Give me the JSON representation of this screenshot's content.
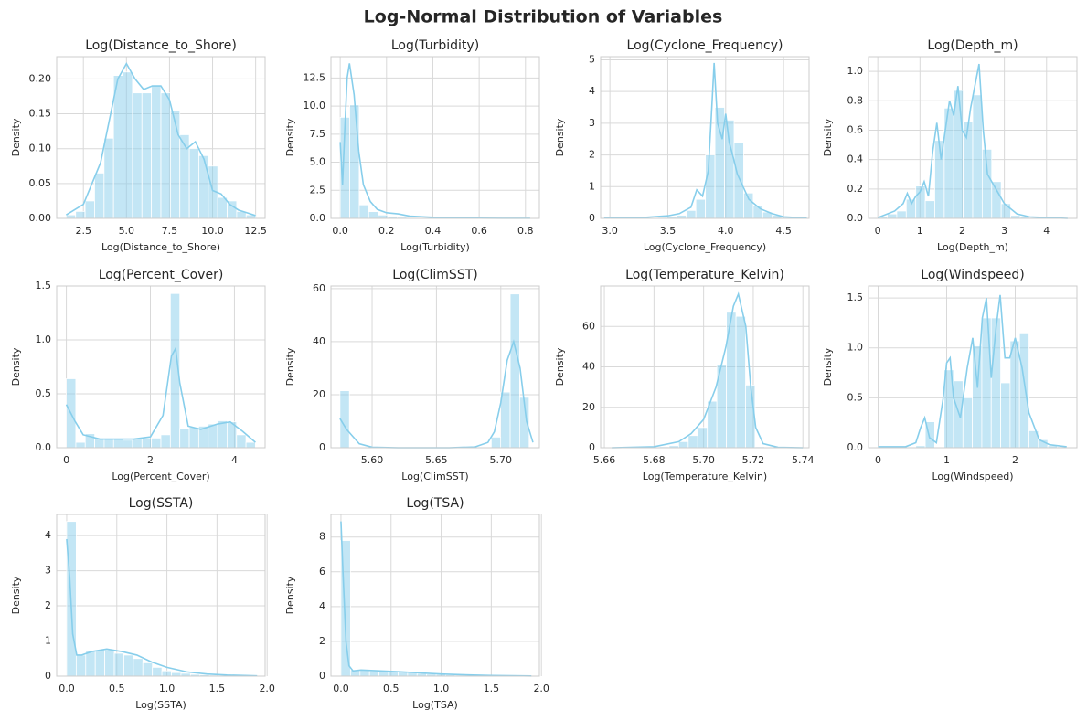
{
  "title": "Log-Normal Distribution of Variables",
  "chart_data": [
    {
      "type": "histogram",
      "title": "Log(Distance_to_Shore)",
      "xlabel": "Log(Distance_to_Shore)",
      "ylabel": "Density",
      "color": "#87ceeb",
      "grid": true,
      "bins": [
        1.5,
        2.05,
        2.6,
        3.15,
        3.7,
        4.25,
        4.8,
        5.35,
        5.9,
        6.45,
        7.0,
        7.55,
        8.1,
        8.65,
        9.2,
        9.75,
        10.3,
        10.85,
        11.4,
        11.95,
        12.5
      ],
      "values": [
        0.005,
        0.01,
        0.025,
        0.065,
        0.115,
        0.205,
        0.21,
        0.18,
        0.18,
        0.19,
        0.18,
        0.155,
        0.12,
        0.1,
        0.09,
        0.075,
        0.03,
        0.025,
        0.01,
        0.005
      ],
      "kde": {
        "x": [
          1.5,
          2.5,
          3.5,
          4.0,
          4.5,
          5.0,
          5.5,
          6.0,
          6.5,
          7.0,
          7.5,
          8.0,
          8.5,
          9.0,
          9.5,
          10.0,
          10.5,
          11,
          11.5,
          12,
          12.5
        ],
        "values": [
          0.005,
          0.02,
          0.08,
          0.14,
          0.2,
          0.222,
          0.2,
          0.185,
          0.19,
          0.19,
          0.17,
          0.12,
          0.1,
          0.11,
          0.085,
          0.04,
          0.035,
          0.02,
          0.012,
          0.008,
          0.004
        ]
      },
      "xlim": [
        0.95,
        13.05
      ],
      "xticks": [
        2.5,
        {
          "value": 5,
          "label": "5.0"
        },
        7.5,
        {
          "value": 10,
          "label": "10.0"
        },
        12.5
      ],
      "ylim": [
        0,
        0.232
      ],
      "yticks": [
        {
          "value": 0,
          "label": "0.00"
        },
        0.05,
        {
          "value": 0.1,
          "label": "0.10"
        },
        0.15,
        {
          "value": 0.2,
          "label": "0.20"
        }
      ]
    },
    {
      "type": "histogram",
      "title": "Log(Turbidity)",
      "xlabel": "Log(Turbidity)",
      "ylabel": "Density",
      "color": "#87ceeb",
      "grid": true,
      "bins": [
        0,
        0.041,
        0.082,
        0.123,
        0.164,
        0.205,
        0.246,
        0.287,
        0.328,
        0.369,
        0.41,
        0.451,
        0.492,
        0.533,
        0.574,
        0.615,
        0.656,
        0.697,
        0.738,
        0.779,
        0.82
      ],
      "values": [
        9.0,
        10.1,
        1.2,
        0.6,
        0.3,
        0.2,
        0.1,
        0.05,
        0.03,
        0.02,
        0.01,
        0.01,
        0.005,
        0,
        0,
        0,
        0,
        0,
        0,
        0.005
      ],
      "kde": {
        "x": [
          0,
          0.01,
          0.02,
          0.03,
          0.04,
          0.06,
          0.08,
          0.1,
          0.13,
          0.16,
          0.2,
          0.25,
          0.3,
          0.4,
          0.5,
          0.6,
          0.7,
          0.82
        ],
        "values": [
          6.8,
          3.0,
          8,
          12.5,
          13.8,
          11,
          6,
          3,
          1.5,
          0.8,
          0.5,
          0.4,
          0.2,
          0.1,
          0.05,
          0.02,
          0.01,
          0.01
        ]
      },
      "xlim": [
        -0.04,
        0.86
      ],
      "xticks": [
        {
          "value": 0,
          "label": "0.0"
        },
        0.2,
        0.4,
        0.6,
        0.8
      ],
      "ylim": [
        0,
        14.4
      ],
      "yticks": [
        {
          "value": 0,
          "label": "0.0"
        },
        2.5,
        {
          "value": 5,
          "label": "5.0"
        },
        7.5,
        {
          "value": 10,
          "label": "10.0"
        },
        12.5
      ]
    },
    {
      "type": "histogram",
      "title": "Log(Cyclone_Frequency)",
      "xlabel": "Log(Cyclone_Frequency)",
      "ylabel": "Density",
      "color": "#87ceeb",
      "grid": true,
      "bins": [
        3.0,
        3.0825,
        3.165,
        3.2475,
        3.33,
        3.4125,
        3.495,
        3.5775,
        3.66,
        3.7425,
        3.825,
        3.9075,
        3.99,
        4.0725,
        4.155,
        4.2375,
        4.32,
        4.4025,
        4.485,
        4.5675,
        4.65
      ],
      "values": [
        0.01,
        0.01,
        0.01,
        0.02,
        0.02,
        0.03,
        0.05,
        0.1,
        0.25,
        0.6,
        2.0,
        3.5,
        3.1,
        2.4,
        0.8,
        0.4,
        0.2,
        0.1,
        0.05,
        0.02
      ],
      "kde": {
        "x": [
          2.95,
          3.3,
          3.5,
          3.6,
          3.7,
          3.75,
          3.8,
          3.85,
          3.88,
          3.9,
          3.93,
          3.97,
          4.0,
          4.03,
          4.06,
          4.1,
          4.2,
          4.3,
          4.4,
          4.5,
          4.7
        ],
        "values": [
          0.01,
          0.03,
          0.08,
          0.15,
          0.35,
          0.9,
          0.7,
          1.5,
          3.5,
          4.9,
          3.0,
          2.5,
          3.3,
          2.4,
          2.0,
          1.4,
          0.6,
          0.3,
          0.15,
          0.05,
          0.01
        ]
      },
      "xlim": [
        2.92,
        4.72
      ],
      "xticks": [
        {
          "value": 3,
          "label": "3.0"
        },
        3.5,
        {
          "value": 4,
          "label": "4.0"
        },
        4.5
      ],
      "ylim": [
        0,
        5.1
      ],
      "yticks": [
        0,
        1,
        2,
        3,
        4,
        5
      ]
    },
    {
      "type": "histogram",
      "title": "Log(Depth_m)",
      "xlabel": "Log(Depth_m)",
      "ylabel": "Density",
      "color": "#87ceeb",
      "grid": true,
      "bins": [
        0,
        0.225,
        0.45,
        0.675,
        0.9,
        1.125,
        1.35,
        1.575,
        1.8,
        2.025,
        2.25,
        2.475,
        2.7,
        2.925,
        3.15,
        3.375,
        3.6,
        3.825,
        4.05,
        4.275,
        4.5
      ],
      "values": [
        0.01,
        0.03,
        0.05,
        0.13,
        0.22,
        0.12,
        0.53,
        0.75,
        0.87,
        0.66,
        0.84,
        0.47,
        0.25,
        0.1,
        0.02,
        0.01,
        0.005,
        0.003,
        0.002,
        0.001
      ],
      "kde": {
        "x": [
          0,
          0.4,
          0.6,
          0.7,
          0.8,
          0.9,
          1.0,
          1.1,
          1.2,
          1.3,
          1.4,
          1.5,
          1.6,
          1.7,
          1.8,
          1.9,
          2.0,
          2.1,
          2.2,
          2.3,
          2.4,
          2.5,
          2.6,
          2.8,
          3.0,
          3.3,
          3.6,
          4.5
        ],
        "values": [
          0.005,
          0.05,
          0.1,
          0.17,
          0.1,
          0.15,
          0.18,
          0.25,
          0.15,
          0.45,
          0.65,
          0.4,
          0.6,
          0.8,
          0.7,
          0.9,
          0.6,
          0.55,
          0.75,
          0.9,
          1.05,
          0.6,
          0.3,
          0.2,
          0.1,
          0.03,
          0.01,
          0
        ]
      },
      "xlim": [
        -0.22,
        4.72
      ],
      "xticks": [
        0,
        1,
        2,
        3,
        4
      ],
      "ylim": [
        0,
        1.1
      ],
      "yticks": [
        {
          "value": 0,
          "label": "0.0"
        },
        0.2,
        0.4,
        0.6,
        0.8,
        {
          "value": 1,
          "label": "1.0"
        }
      ]
    },
    {
      "type": "histogram",
      "title": "Log(Percent_Cover)",
      "xlabel": "Log(Percent_Cover)",
      "ylabel": "Density",
      "color": "#87ceeb",
      "grid": true,
      "bins": [
        0,
        0.225,
        0.45,
        0.675,
        0.9,
        1.125,
        1.35,
        1.575,
        1.8,
        2.025,
        2.25,
        2.475,
        2.7,
        2.925,
        3.15,
        3.375,
        3.6,
        3.825,
        4.05,
        4.275,
        4.5
      ],
      "values": [
        0.64,
        0.05,
        0.13,
        0.08,
        0.08,
        0.08,
        0.07,
        0.08,
        0.08,
        0.09,
        0.12,
        1.43,
        0.18,
        0.19,
        0.2,
        0.22,
        0.25,
        0.24,
        0.12,
        0.05
      ],
      "kde": {
        "x": [
          0,
          0.2,
          0.4,
          0.8,
          1.2,
          1.6,
          2.0,
          2.3,
          2.5,
          2.6,
          2.7,
          2.9,
          3.2,
          3.6,
          3.9,
          4.2,
          4.5
        ],
        "values": [
          0.4,
          0.25,
          0.12,
          0.08,
          0.08,
          0.08,
          0.1,
          0.3,
          0.85,
          0.92,
          0.6,
          0.2,
          0.17,
          0.22,
          0.24,
          0.15,
          0.05
        ]
      },
      "xlim": [
        -0.23,
        4.73
      ],
      "xticks": [
        0,
        2,
        4
      ],
      "ylim": [
        0,
        1.5
      ],
      "yticks": [
        {
          "value": 0,
          "label": "0.0"
        },
        0.5,
        {
          "value": 1,
          "label": "1.0"
        },
        1.5
      ]
    },
    {
      "type": "histogram",
      "title": "Log(ClimSST)",
      "xlabel": "Log(ClimSST)",
      "ylabel": "Density",
      "color": "#87ceeb",
      "grid": true,
      "bins": [
        5.575,
        5.58235,
        5.5897,
        5.59705,
        5.6044,
        5.61175,
        5.6191,
        5.62645,
        5.6338,
        5.64115,
        5.6485,
        5.65585,
        5.6632,
        5.67055,
        5.6779,
        5.68525,
        5.6926,
        5.69995,
        5.7073,
        5.71465,
        5.722
      ],
      "values": [
        21.5,
        0,
        0,
        0,
        0,
        0,
        0,
        0,
        0,
        0,
        0,
        0,
        0,
        0,
        0,
        0,
        4.0,
        21,
        58,
        19
      ],
      "kde": {
        "x": [
          5.575,
          5.58,
          5.59,
          5.6,
          5.62,
          5.64,
          5.66,
          5.68,
          5.69,
          5.695,
          5.7,
          5.705,
          5.71,
          5.715,
          5.72,
          5.725
        ],
        "values": [
          11,
          7,
          1.5,
          0.2,
          0,
          0,
          0,
          0.3,
          2,
          6,
          17,
          33,
          40,
          30,
          10,
          2
        ]
      },
      "xlim": [
        5.568,
        5.73
      ],
      "xticks": [
        {
          "value": 5.6,
          "label": "5.60"
        },
        5.65,
        {
          "value": 5.7,
          "label": "5.70"
        }
      ],
      "ylim": [
        0,
        61
      ],
      "yticks": [
        0,
        20,
        40,
        60
      ]
    },
    {
      "type": "histogram",
      "title": "Log(Temperature_Kelvin)",
      "xlabel": "Log(Temperature_Kelvin)",
      "ylabel": "Density",
      "color": "#87ceeb",
      "grid": true,
      "bins": [
        5.663,
        5.66685,
        5.6707,
        5.67455,
        5.6784,
        5.68225,
        5.6861,
        5.68995,
        5.6938,
        5.69765,
        5.7015,
        5.70535,
        5.7092,
        5.71305,
        5.7169,
        5.72075,
        5.7246,
        5.72845,
        5.7323,
        5.73615,
        5.74
      ],
      "values": [
        0,
        0,
        0,
        0,
        0.2,
        0.5,
        1,
        3,
        6,
        10,
        23,
        41,
        67,
        65,
        31,
        0.5,
        0,
        0,
        0,
        0.1
      ],
      "kde": {
        "x": [
          5.663,
          5.68,
          5.69,
          5.695,
          5.7,
          5.705,
          5.709,
          5.712,
          5.714,
          5.717,
          5.719,
          5.721,
          5.724,
          5.73,
          5.74
        ],
        "values": [
          0,
          0.5,
          3,
          7,
          14,
          30,
          50,
          70,
          76,
          60,
          30,
          10,
          2,
          0.2,
          0
        ]
      },
      "xlim": [
        5.6585,
        5.7425
      ],
      "xticks": [
        5.66,
        5.68,
        {
          "value": 5.7,
          "label": "5.70"
        },
        5.72,
        5.74
      ],
      "ylim": [
        0,
        80
      ],
      "yticks": [
        0,
        20,
        40,
        60
      ]
    },
    {
      "type": "histogram",
      "title": "Log(Windspeed)",
      "xlabel": "Log(Windspeed)",
      "ylabel": "Density",
      "color": "#87ceeb",
      "grid": true,
      "bins": [
        0,
        0.1375,
        0.275,
        0.4125,
        0.55,
        0.6875,
        0.825,
        0.9625,
        1.1,
        1.2375,
        1.375,
        1.5125,
        1.65,
        1.7875,
        1.925,
        2.0625,
        2.2,
        2.3375,
        2.475,
        2.6125,
        2.75
      ],
      "values": [
        0.01,
        0,
        0,
        0,
        0.02,
        0.26,
        0,
        0.78,
        0.67,
        0.5,
        1.02,
        1.3,
        1.3,
        0.65,
        1.07,
        1.15,
        0.17,
        0.08,
        0.02,
        0.01
      ],
      "kde": {
        "x": [
          0,
          0.4,
          0.55,
          0.62,
          0.68,
          0.75,
          0.85,
          0.95,
          1.0,
          1.05,
          1.1,
          1.2,
          1.3,
          1.38,
          1.45,
          1.52,
          1.58,
          1.65,
          1.72,
          1.78,
          1.85,
          1.92,
          2.0,
          2.1,
          2.2,
          2.35,
          2.5,
          2.75
        ],
        "values": [
          0.01,
          0.01,
          0.05,
          0.2,
          0.3,
          0.1,
          0.05,
          0.5,
          0.85,
          0.9,
          0.5,
          0.3,
          0.8,
          1.1,
          0.6,
          1.3,
          1.5,
          0.7,
          1.2,
          1.53,
          0.9,
          0.9,
          1.1,
          0.8,
          0.35,
          0.08,
          0.03,
          0.01
        ]
      },
      "xlim": [
        -0.14,
        2.9
      ],
      "xticks": [
        0,
        1,
        2
      ],
      "ylim": [
        0,
        1.62
      ],
      "yticks": [
        {
          "value": 0,
          "label": "0.0"
        },
        0.5,
        {
          "value": 1,
          "label": "1.0"
        },
        1.5
      ]
    },
    {
      "type": "histogram",
      "title": "Log(SSTA)",
      "xlabel": "Log(SSTA)",
      "ylabel": "Density",
      "color": "#87ceeb",
      "grid": true,
      "bins": [
        0,
        0.095,
        0.19,
        0.285,
        0.38,
        0.475,
        0.57,
        0.665,
        0.76,
        0.855,
        0.95,
        1.045,
        1.14,
        1.235,
        1.33,
        1.425,
        1.52,
        1.615,
        1.71,
        1.805,
        1.9
      ],
      "values": [
        4.4,
        0.6,
        0.72,
        0.75,
        0.75,
        0.65,
        0.6,
        0.5,
        0.38,
        0.25,
        0.15,
        0.1,
        0.08,
        0.05,
        0.04,
        0.03,
        0.02,
        0.01,
        0.01,
        0.01
      ],
      "kde": {
        "x": [
          0,
          0.03,
          0.06,
          0.1,
          0.15,
          0.25,
          0.4,
          0.55,
          0.7,
          0.85,
          1.0,
          1.2,
          1.4,
          1.6,
          1.9
        ],
        "values": [
          3.9,
          2.8,
          1.2,
          0.6,
          0.6,
          0.7,
          0.77,
          0.7,
          0.6,
          0.4,
          0.25,
          0.12,
          0.06,
          0.03,
          0.01
        ]
      },
      "xlim": [
        -0.1,
        1.98
      ],
      "xticks": [
        {
          "value": 0,
          "label": "0.0"
        },
        0.5,
        {
          "value": 1,
          "label": "1.0"
        },
        1.5,
        {
          "value": 2,
          "label": "2.0"
        }
      ],
      "ylim": [
        0,
        4.6
      ],
      "yticks": [
        0,
        1,
        2,
        3,
        4
      ]
    },
    {
      "type": "histogram",
      "title": "Log(TSA)",
      "xlabel": "Log(TSA)",
      "ylabel": "Density",
      "color": "#87ceeb",
      "grid": true,
      "bins": [
        0,
        0.095,
        0.19,
        0.285,
        0.38,
        0.475,
        0.57,
        0.665,
        0.76,
        0.855,
        0.95,
        1.045,
        1.14,
        1.235,
        1.33,
        1.425,
        1.52,
        1.615,
        1.71,
        1.805,
        1.9
      ],
      "values": [
        7.8,
        0.35,
        0.35,
        0.3,
        0.3,
        0.28,
        0.25,
        0.2,
        0.15,
        0.12,
        0.1,
        0.08,
        0.06,
        0.05,
        0.04,
        0.03,
        0.02,
        0.02,
        0.01,
        0.01
      ],
      "kde": {
        "x": [
          0,
          0.02,
          0.05,
          0.08,
          0.12,
          0.2,
          0.4,
          0.6,
          0.8,
          1.0,
          1.2,
          1.5,
          1.9
        ],
        "values": [
          8.9,
          6,
          2,
          0.6,
          0.3,
          0.35,
          0.3,
          0.25,
          0.18,
          0.12,
          0.08,
          0.04,
          0.01
        ]
      },
      "xlim": [
        -0.1,
        1.98
      ],
      "xticks": [
        {
          "value": 0,
          "label": "0.0"
        },
        0.5,
        {
          "value": 1,
          "label": "1.0"
        },
        1.5,
        {
          "value": 2,
          "label": "2.0"
        }
      ],
      "ylim": [
        0,
        9.3
      ],
      "yticks": [
        0,
        2,
        4,
        6,
        8
      ]
    }
  ]
}
